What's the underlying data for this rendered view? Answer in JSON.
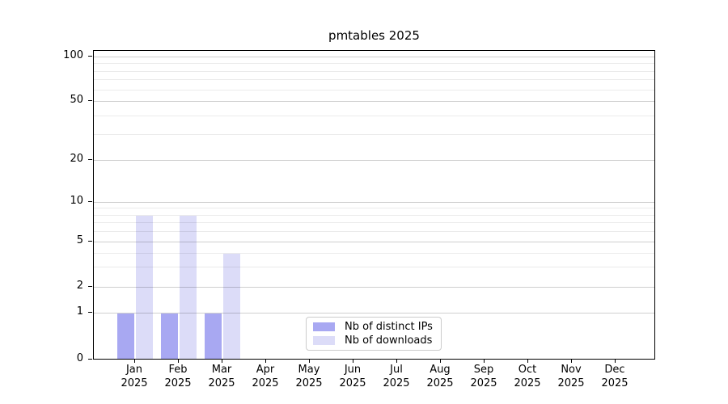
{
  "figure": {
    "title": "pmtables 2025"
  },
  "legend": {
    "items": [
      {
        "label": "Nb of distinct IPs"
      },
      {
        "label": "Nb of downloads"
      }
    ]
  },
  "chart_data": {
    "type": "bar",
    "title": "pmtables 2025",
    "categories": [
      "Jan 2025",
      "Feb 2025",
      "Mar 2025",
      "Apr 2025",
      "May 2025",
      "Jun 2025",
      "Jul 2025",
      "Aug 2025",
      "Sep 2025",
      "Oct 2025",
      "Nov 2025",
      "Dec 2025"
    ],
    "x_tick_line1": [
      "Jan",
      "Feb",
      "Mar",
      "Apr",
      "May",
      "Jun",
      "Jul",
      "Aug",
      "Sep",
      "Oct",
      "Nov",
      "Dec"
    ],
    "x_tick_line2": "2025",
    "series": [
      {
        "name": "Nb of distinct IPs",
        "color": "#a8a8f2",
        "values": [
          1,
          1,
          1,
          0,
          0,
          0,
          0,
          0,
          0,
          0,
          0,
          0
        ]
      },
      {
        "name": "Nb of downloads",
        "color": "#dcdcf8",
        "values": [
          8,
          8,
          4,
          0,
          0,
          0,
          0,
          0,
          0,
          0,
          0,
          0
        ]
      }
    ],
    "y_axis": {
      "scale": "log-like above 1 with 0 baseline",
      "major_ticks": [
        0,
        1,
        2,
        5,
        10,
        20,
        50,
        100
      ],
      "minor_gridlines": [
        3,
        4,
        6,
        7,
        8,
        9,
        30,
        40,
        60,
        70,
        80,
        90
      ],
      "range": [
        0,
        100
      ]
    },
    "grid": "horizontal major and minor gridlines",
    "legend_position": "lower center inside axes"
  },
  "colors": {
    "bar_distinct_ips": "#a8a8f2",
    "bar_downloads": "#dcdcf8",
    "axis": "#000000",
    "background": "#ffffff"
  }
}
